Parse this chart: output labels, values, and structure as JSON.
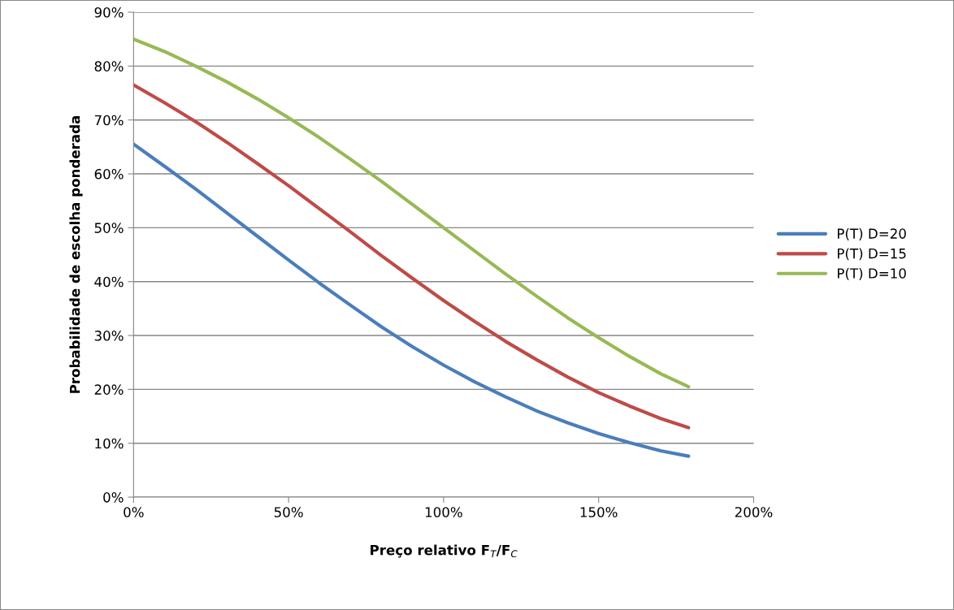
{
  "chart_data": {
    "type": "line",
    "xlabel": "Preço relativo F$_{T}$/F$_{C}$",
    "ylabel": "Probabilidade de escolha ponderada",
    "x": [
      0,
      10,
      20,
      30,
      40,
      50,
      60,
      70,
      80,
      90,
      100,
      110,
      120,
      130,
      140,
      150,
      160,
      170,
      179
    ],
    "series": [
      {
        "name": "P(T) D=20",
        "color": "#4a7ebb",
        "values": [
          65.5,
          61.4,
          57.2,
          52.8,
          48.4,
          44.0,
          39.7,
          35.6,
          31.6,
          27.9,
          24.5,
          21.4,
          18.6,
          16.0,
          13.8,
          11.8,
          10.1,
          8.6,
          7.6
        ]
      },
      {
        "name": "P(T) D=15",
        "color": "#be4b48",
        "values": [
          76.5,
          73.2,
          69.7,
          65.9,
          61.9,
          57.8,
          53.5,
          49.2,
          44.8,
          40.6,
          36.5,
          32.6,
          28.9,
          25.5,
          22.3,
          19.4,
          16.9,
          14.6,
          12.9
        ]
      },
      {
        "name": "P(T) D=10",
        "color": "#98b954",
        "values": [
          85.0,
          82.7,
          80.0,
          77.1,
          73.9,
          70.4,
          66.7,
          62.7,
          58.6,
          54.3,
          50.0,
          45.7,
          41.4,
          37.3,
          33.3,
          29.6,
          26.1,
          22.9,
          20.5
        ]
      }
    ],
    "xlim": [
      0,
      200
    ],
    "xticks": [
      {
        "value": 0,
        "label": "0%"
      },
      {
        "value": 50,
        "label": "50%"
      },
      {
        "value": 100,
        "label": "100%"
      },
      {
        "value": 150,
        "label": "150%"
      },
      {
        "value": 200,
        "label": "200%"
      }
    ],
    "ylim": [
      0,
      90
    ],
    "yticks": [
      {
        "value": 0,
        "label": "0%"
      },
      {
        "value": 10,
        "label": "10%"
      },
      {
        "value": 20,
        "label": "20%"
      },
      {
        "value": 30,
        "label": "30%"
      },
      {
        "value": 40,
        "label": "40%"
      },
      {
        "value": 50,
        "label": "50%"
      },
      {
        "value": 60,
        "label": "60%"
      },
      {
        "value": 70,
        "label": "70%"
      },
      {
        "value": 80,
        "label": "80%"
      },
      {
        "value": 90,
        "label": "90%"
      }
    ],
    "grid": "y",
    "legend": "right",
    "marker": "none",
    "line_style": "solid"
  }
}
